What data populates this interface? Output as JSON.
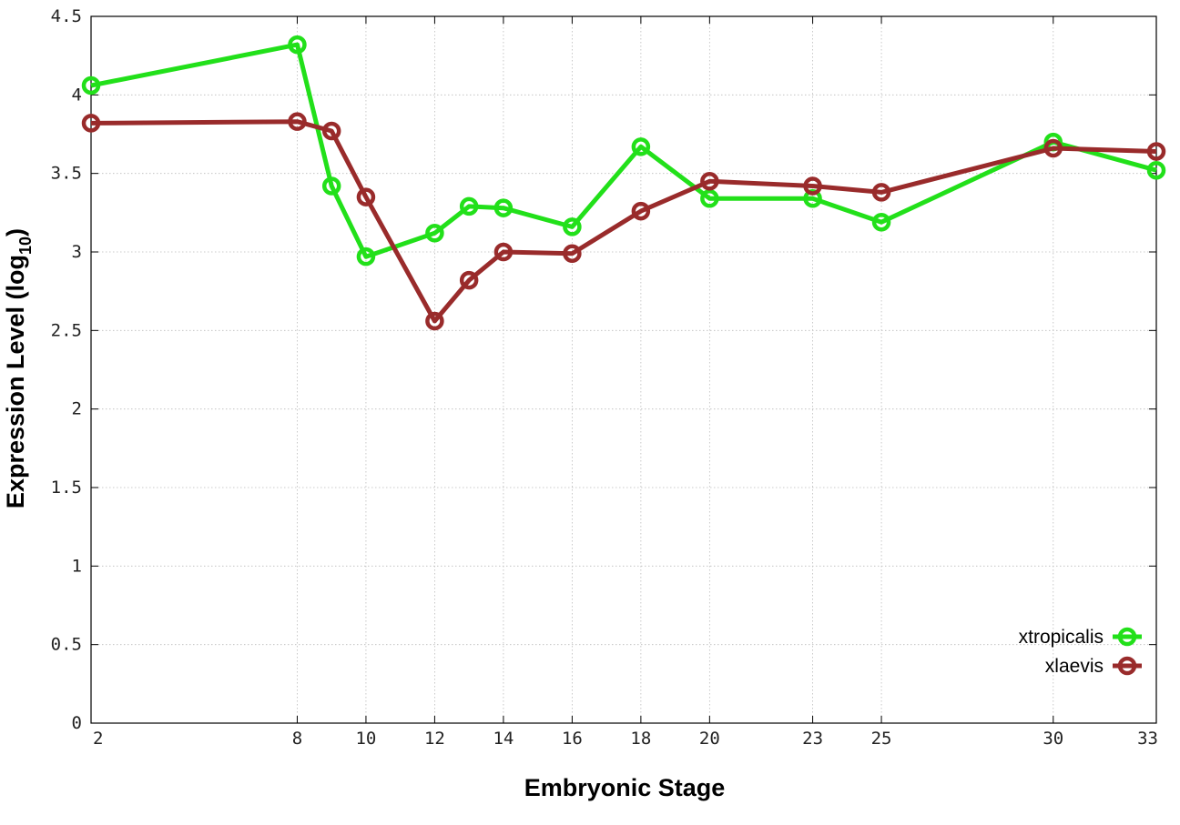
{
  "chart_data": {
    "type": "line",
    "xlabel": "Embryonic Stage",
    "ylabel_main": "Expression Level (log",
    "ylabel_sub": "10",
    "ylabel_close": ")",
    "x": [
      2,
      8,
      9,
      10,
      12,
      13,
      14,
      16,
      18,
      20,
      23,
      25,
      30,
      33
    ],
    "xticks": [
      "2",
      "8",
      "10",
      "12",
      "14",
      "16",
      "18",
      "20",
      "23",
      "25",
      "30",
      "33"
    ],
    "yticks": [
      "0",
      "0.5",
      "1",
      "1.5",
      "2",
      "2.5",
      "3",
      "3.5",
      "4",
      "4.5"
    ],
    "ylim": [
      0,
      4.5
    ],
    "grid": true,
    "legend_position": "bottom-right",
    "series": [
      {
        "name": "xtropicalis",
        "color": "#22e01a",
        "values": [
          4.06,
          4.32,
          3.42,
          2.97,
          3.12,
          3.29,
          3.28,
          3.16,
          3.67,
          3.34,
          3.34,
          3.19,
          3.7,
          3.52
        ]
      },
      {
        "name": "xlaevis",
        "color": "#992b2b",
        "values": [
          3.82,
          3.83,
          3.77,
          3.35,
          2.56,
          2.82,
          3.0,
          2.99,
          3.26,
          3.45,
          3.42,
          3.38,
          3.66,
          3.64
        ]
      }
    ]
  }
}
